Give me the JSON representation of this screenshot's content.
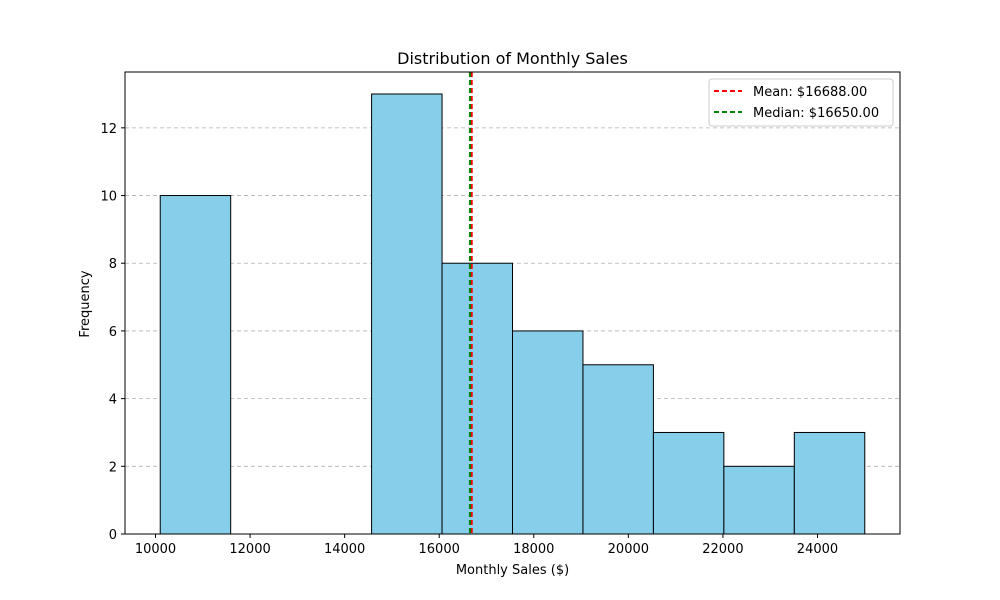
{
  "chart_data": {
    "type": "bar",
    "title": "Distribution of Monthly Sales",
    "xlabel": "Monthly Sales ($)",
    "ylabel": "Frequency",
    "bins": [
      {
        "start": 10100,
        "end": 11590,
        "count": 10
      },
      {
        "start": 11590,
        "end": 13080,
        "count": 0
      },
      {
        "start": 13080,
        "end": 14570,
        "count": 0
      },
      {
        "start": 14570,
        "end": 16060,
        "count": 13
      },
      {
        "start": 16060,
        "end": 17550,
        "count": 8
      },
      {
        "start": 17550,
        "end": 19040,
        "count": 6
      },
      {
        "start": 19040,
        "end": 20530,
        "count": 5
      },
      {
        "start": 20530,
        "end": 22020,
        "count": 3
      },
      {
        "start": 22020,
        "end": 23510,
        "count": 2
      },
      {
        "start": 23510,
        "end": 25000,
        "count": 3
      }
    ],
    "xlim": [
      9355,
      25745
    ],
    "ylim": [
      0,
      13.65
    ],
    "xticks": [
      10000,
      12000,
      14000,
      16000,
      18000,
      20000,
      22000,
      24000
    ],
    "yticks": [
      0,
      2,
      4,
      6,
      8,
      10,
      12
    ],
    "grid": "y-dashed",
    "reference_lines": [
      {
        "name": "Mean: $16688.00",
        "x": 16688,
        "color": "#ff0000",
        "style": "dashed"
      },
      {
        "name": "Median: $16650.00",
        "x": 16650,
        "color": "#008000",
        "style": "dashed"
      }
    ],
    "legend": "top-right",
    "bar_color": "#87ceeb",
    "edge_color": "#000000"
  }
}
